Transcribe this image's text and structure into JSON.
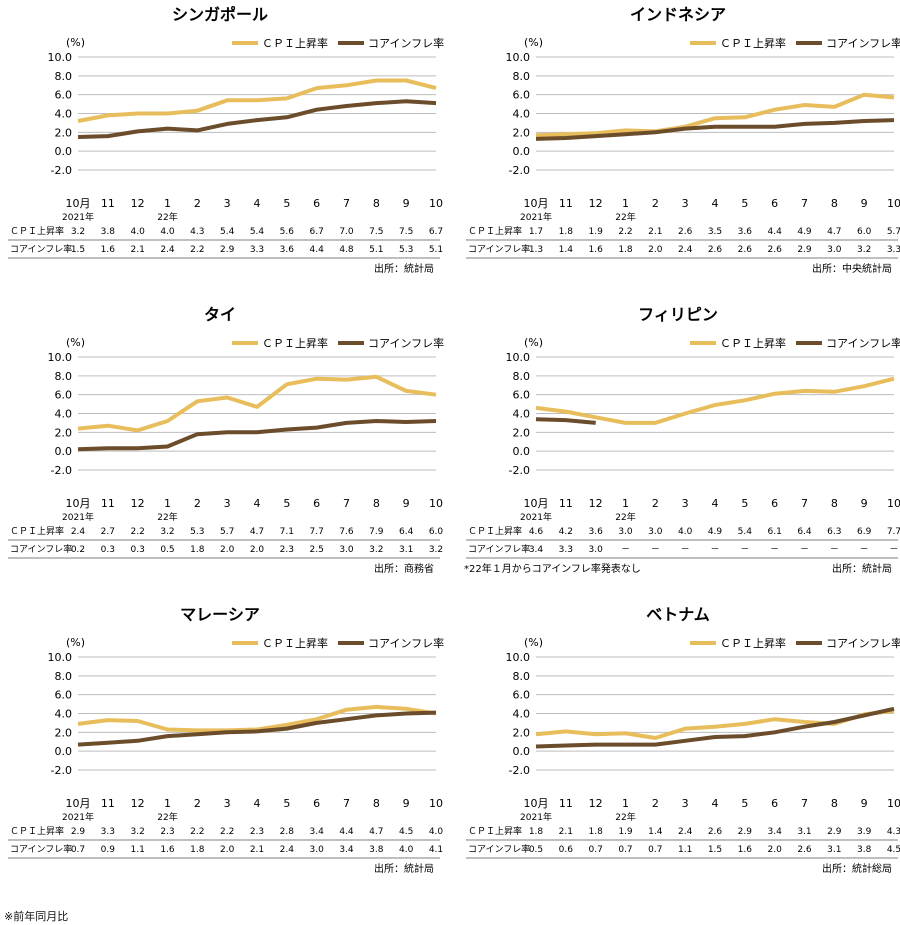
{
  "footnote": "※前年同月比",
  "legend": {
    "cpi": "ＣＰＩ上昇率",
    "core": "コアインフレ率"
  },
  "colors": {
    "cpi": "#e8bd5c",
    "core": "#6b4c2b",
    "grid": "#bdbdbd"
  },
  "row_labels": {
    "cpi": "ＣＰＩ上昇率",
    "core": "コアインフレ率"
  },
  "y_unit": "(%)",
  "year_labels": {
    "y2021": "2021年",
    "y2022": "22年"
  },
  "chart_data": [
    {
      "type": "line",
      "title": "シンガポール",
      "x": [
        "10月",
        "11",
        "12",
        "1",
        "2",
        "3",
        "4",
        "5",
        "6",
        "7",
        "8",
        "9",
        "10"
      ],
      "ylim": [
        -2,
        10
      ],
      "yticks": [
        "10.0",
        "8.0",
        "6.0",
        "4.0",
        "2.0",
        "0.0",
        "-2.0"
      ],
      "series": [
        {
          "name": "ＣＰＩ上昇率",
          "values": [
            3.2,
            3.8,
            4.0,
            4.0,
            4.3,
            5.4,
            5.4,
            5.6,
            6.7,
            7.0,
            7.5,
            7.5,
            6.7
          ],
          "labels": [
            "3.2",
            "3.8",
            "4.0",
            "4.0",
            "4.3",
            "5.4",
            "5.4",
            "5.6",
            "6.7",
            "7.0",
            "7.5",
            "7.5",
            "6.7"
          ]
        },
        {
          "name": "コアインフレ率",
          "values": [
            1.5,
            1.6,
            2.1,
            2.4,
            2.2,
            2.9,
            3.3,
            3.6,
            4.4,
            4.8,
            5.1,
            5.3,
            5.1
          ],
          "labels": [
            "1.5",
            "1.6",
            "2.1",
            "2.4",
            "2.2",
            "2.9",
            "3.3",
            "3.6",
            "4.4",
            "4.8",
            "5.1",
            "5.3",
            "5.1"
          ]
        }
      ],
      "source": "出所：統計局",
      "note": ""
    },
    {
      "type": "line",
      "title": "インドネシア",
      "x": [
        "10月",
        "11",
        "12",
        "1",
        "2",
        "3",
        "4",
        "5",
        "6",
        "7",
        "8",
        "9",
        "10"
      ],
      "ylim": [
        -2,
        10
      ],
      "yticks": [
        "10.0",
        "8.0",
        "6.0",
        "4.0",
        "2.0",
        "0.0",
        "-2.0"
      ],
      "series": [
        {
          "name": "ＣＰＩ上昇率",
          "values": [
            1.7,
            1.8,
            1.9,
            2.2,
            2.1,
            2.6,
            3.5,
            3.6,
            4.4,
            4.9,
            4.7,
            6.0,
            5.7
          ],
          "labels": [
            "1.7",
            "1.8",
            "1.9",
            "2.2",
            "2.1",
            "2.6",
            "3.5",
            "3.6",
            "4.4",
            "4.9",
            "4.7",
            "6.0",
            "5.7"
          ]
        },
        {
          "name": "コアインフレ率",
          "values": [
            1.3,
            1.4,
            1.6,
            1.8,
            2.0,
            2.4,
            2.6,
            2.6,
            2.6,
            2.9,
            3.0,
            3.2,
            3.3
          ],
          "labels": [
            "1.3",
            "1.4",
            "1.6",
            "1.8",
            "2.0",
            "2.4",
            "2.6",
            "2.6",
            "2.6",
            "2.9",
            "3.0",
            "3.2",
            "3.3"
          ]
        }
      ],
      "source": "出所：中央統計局",
      "note": ""
    },
    {
      "type": "line",
      "title": "タイ",
      "x": [
        "10月",
        "11",
        "12",
        "1",
        "2",
        "3",
        "4",
        "5",
        "6",
        "7",
        "8",
        "9",
        "10"
      ],
      "ylim": [
        -2,
        10
      ],
      "yticks": [
        "10.0",
        "8.0",
        "6.0",
        "4.0",
        "2.0",
        "0.0",
        "-2.0"
      ],
      "series": [
        {
          "name": "ＣＰＩ上昇率",
          "values": [
            2.4,
            2.7,
            2.2,
            3.2,
            5.3,
            5.7,
            4.7,
            7.1,
            7.7,
            7.6,
            7.9,
            6.4,
            6.0
          ],
          "labels": [
            "2.4",
            "2.7",
            "2.2",
            "3.2",
            "5.3",
            "5.7",
            "4.7",
            "7.1",
            "7.7",
            "7.6",
            "7.9",
            "6.4",
            "6.0"
          ]
        },
        {
          "name": "コアインフレ率",
          "values": [
            0.2,
            0.3,
            0.3,
            0.5,
            1.8,
            2.0,
            2.0,
            2.3,
            2.5,
            3.0,
            3.2,
            3.1,
            3.2
          ],
          "labels": [
            "0.2",
            "0.3",
            "0.3",
            "0.5",
            "1.8",
            "2.0",
            "2.0",
            "2.3",
            "2.5",
            "3.0",
            "3.2",
            "3.1",
            "3.2"
          ]
        }
      ],
      "source": "出所：商務省",
      "note": ""
    },
    {
      "type": "line",
      "title": "フィリピン",
      "x": [
        "10月",
        "11",
        "12",
        "1",
        "2",
        "3",
        "4",
        "5",
        "6",
        "7",
        "8",
        "9",
        "10"
      ],
      "ylim": [
        -2,
        10
      ],
      "yticks": [
        "10.0",
        "8.0",
        "6.0",
        "4.0",
        "2.0",
        "0.0",
        "-2.0"
      ],
      "series": [
        {
          "name": "ＣＰＩ上昇率",
          "values": [
            4.6,
            4.2,
            3.6,
            3.0,
            3.0,
            4.0,
            4.9,
            5.4,
            6.1,
            6.4,
            6.3,
            6.9,
            7.7
          ],
          "labels": [
            "4.6",
            "4.2",
            "3.6",
            "3.0",
            "3.0",
            "4.0",
            "4.9",
            "5.4",
            "6.1",
            "6.4",
            "6.3",
            "6.9",
            "7.7"
          ]
        },
        {
          "name": "コアインフレ率",
          "values": [
            3.4,
            3.3,
            3.0,
            null,
            null,
            null,
            null,
            null,
            null,
            null,
            null,
            null,
            null
          ],
          "labels": [
            "3.4",
            "3.3",
            "3.0",
            "－",
            "－",
            "－",
            "－",
            "－",
            "－",
            "－",
            "－",
            "－",
            "－"
          ]
        }
      ],
      "source": "出所：統計局",
      "note": "*22年１月からコアインフレ率発表なし"
    },
    {
      "type": "line",
      "title": "マレーシア",
      "x": [
        "10月",
        "11",
        "12",
        "1",
        "2",
        "3",
        "4",
        "5",
        "6",
        "7",
        "8",
        "9",
        "10"
      ],
      "ylim": [
        -2,
        10
      ],
      "yticks": [
        "10.0",
        "8.0",
        "6.0",
        "4.0",
        "2.0",
        "0.0",
        "-2.0"
      ],
      "series": [
        {
          "name": "ＣＰＩ上昇率",
          "values": [
            2.9,
            3.3,
            3.2,
            2.3,
            2.2,
            2.2,
            2.3,
            2.8,
            3.4,
            4.4,
            4.7,
            4.5,
            4.0
          ],
          "labels": [
            "2.9",
            "3.3",
            "3.2",
            "2.3",
            "2.2",
            "2.2",
            "2.3",
            "2.8",
            "3.4",
            "4.4",
            "4.7",
            "4.5",
            "4.0"
          ]
        },
        {
          "name": "コアインフレ率",
          "values": [
            0.7,
            0.9,
            1.1,
            1.6,
            1.8,
            2.0,
            2.1,
            2.4,
            3.0,
            3.4,
            3.8,
            4.0,
            4.1
          ],
          "labels": [
            "0.7",
            "0.9",
            "1.1",
            "1.6",
            "1.8",
            "2.0",
            "2.1",
            "2.4",
            "3.0",
            "3.4",
            "3.8",
            "4.0",
            "4.1"
          ]
        }
      ],
      "source": "出所：統計局",
      "note": ""
    },
    {
      "type": "line",
      "title": "ベトナム",
      "x": [
        "10月",
        "11",
        "12",
        "1",
        "2",
        "3",
        "4",
        "5",
        "6",
        "7",
        "8",
        "9",
        "10"
      ],
      "ylim": [
        -2,
        10
      ],
      "yticks": [
        "10.0",
        "8.0",
        "6.0",
        "4.0",
        "2.0",
        "0.0",
        "-2.0"
      ],
      "series": [
        {
          "name": "ＣＰＩ上昇率",
          "values": [
            1.8,
            2.1,
            1.8,
            1.9,
            1.4,
            2.4,
            2.6,
            2.9,
            3.4,
            3.1,
            2.9,
            3.9,
            4.3
          ],
          "labels": [
            "1.8",
            "2.1",
            "1.8",
            "1.9",
            "1.4",
            "2.4",
            "2.6",
            "2.9",
            "3.4",
            "3.1",
            "2.9",
            "3.9",
            "4.3"
          ]
        },
        {
          "name": "コアインフレ率",
          "values": [
            0.5,
            0.6,
            0.7,
            0.7,
            0.7,
            1.1,
            1.5,
            1.6,
            2.0,
            2.6,
            3.1,
            3.8,
            4.5
          ],
          "labels": [
            "0.5",
            "0.6",
            "0.7",
            "0.7",
            "0.7",
            "1.1",
            "1.5",
            "1.6",
            "2.0",
            "2.6",
            "3.1",
            "3.8",
            "4.5"
          ]
        }
      ],
      "source": "出所：統計総局",
      "note": ""
    }
  ]
}
